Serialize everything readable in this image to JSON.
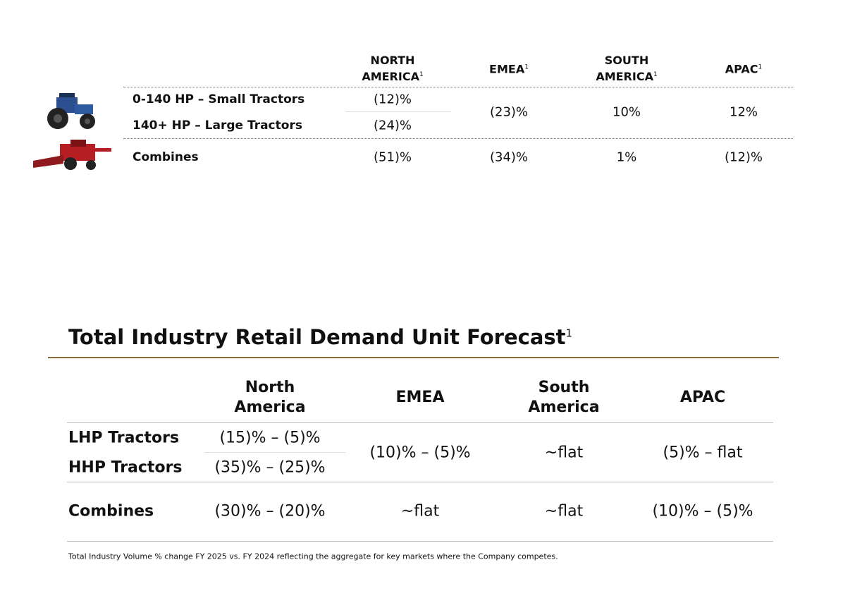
{
  "top_table": {
    "headers": [
      {
        "text": "NORTH AMERICA",
        "note": "1"
      },
      {
        "text": "EMEA",
        "note": "1"
      },
      {
        "text": "SOUTH AMERICA",
        "note": "1"
      },
      {
        "text": "APAC",
        "note": "1"
      }
    ],
    "rows": [
      {
        "label": "0-140 HP – Small Tractors",
        "cells": [
          "(12)%",
          "(23)%",
          "10%",
          "12%"
        ]
      },
      {
        "label": "140+ HP – Large Tractors",
        "cells": [
          "(24)%"
        ]
      },
      {
        "label": "Combines",
        "cells": [
          "(51)%",
          "(34)%",
          "1%",
          "(12)%"
        ]
      }
    ]
  },
  "forecast": {
    "title": "Total Industry Retail Demand Unit Forecast",
    "title_note": "1",
    "headers": [
      "North America",
      "EMEA",
      "South America",
      "APAC"
    ],
    "rows": [
      {
        "label": "LHP Tractors",
        "cells": [
          "(15)% – (5)%",
          "(10)% – (5)%",
          "~flat",
          "(5)% – flat"
        ]
      },
      {
        "label": "HHP Tractors",
        "cells": [
          "(35)% – (25)%"
        ]
      },
      {
        "label": "Combines",
        "cells": [
          "(30)% – (20)%",
          "~flat",
          "~flat",
          "(10)% – (5)%"
        ]
      }
    ],
    "footnote": "Total Industry Volume % change FY 2025 vs. FY 2024 reflecting the aggregate for key markets where the Company competes."
  }
}
